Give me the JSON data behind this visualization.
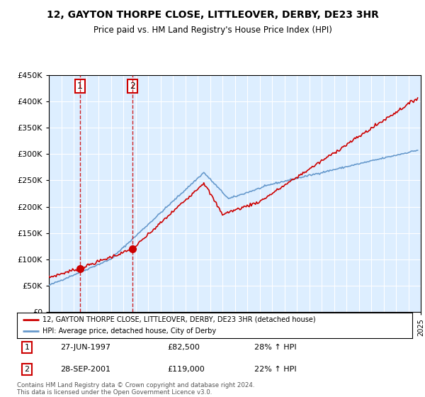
{
  "title": "12, GAYTON THORPE CLOSE, LITTLEOVER, DERBY, DE23 3HR",
  "subtitle": "Price paid vs. HM Land Registry's House Price Index (HPI)",
  "legend_line1": "12, GAYTON THORPE CLOSE, LITTLEOVER, DERBY, DE23 3HR (detached house)",
  "legend_line2": "HPI: Average price, detached house, City of Derby",
  "transaction1_date": "27-JUN-1997",
  "transaction1_price": "£82,500",
  "transaction1_hpi": "28% ↑ HPI",
  "transaction1_year": 1997.49,
  "transaction1_price_val": 82500,
  "transaction2_date": "28-SEP-2001",
  "transaction2_price": "£119,000",
  "transaction2_hpi": "22% ↑ HPI",
  "transaction2_year": 2001.74,
  "transaction2_price_val": 119000,
  "red_color": "#cc0000",
  "blue_color": "#6699cc",
  "bg_color": "#ddeeff",
  "footnote": "Contains HM Land Registry data © Crown copyright and database right 2024.\nThis data is licensed under the Open Government Licence v3.0.",
  "ylim": [
    0,
    450000
  ],
  "xlim": [
    1995,
    2025
  ]
}
